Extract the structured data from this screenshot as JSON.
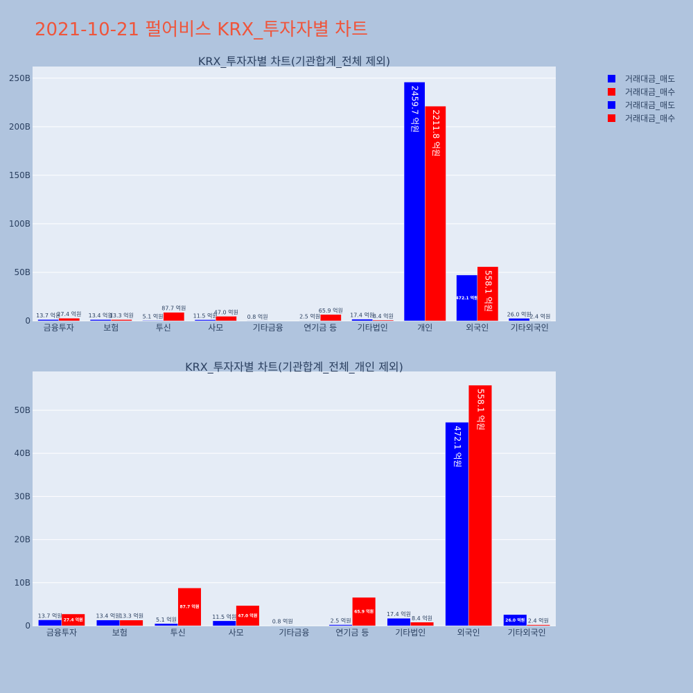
{
  "title": "2021-10-21 펄어비스 KRX_투자자별 차트",
  "colors": {
    "background": "#b0c4de",
    "plot_bg": "#e5ecf6",
    "title": "#ef553b",
    "sell": "#0000ff",
    "buy": "#ff0000",
    "text": "#2a3f5f"
  },
  "legend": [
    {
      "label": "거래대금_매도",
      "color": "#0000ff"
    },
    {
      "label": "거래대금_매수",
      "color": "#ff0000"
    },
    {
      "label": "거래대금_매도",
      "color": "#0000ff"
    },
    {
      "label": "거래대금_매수",
      "color": "#ff0000"
    }
  ],
  "chart_data": [
    {
      "type": "bar",
      "title": "KRX_투자자별 차트(기관합계_전체 제외)",
      "categories": [
        "금융투자",
        "보험",
        "투신",
        "사모",
        "기타금융",
        "연기금 등",
        "기타법인",
        "개인",
        "외국인",
        "기타외국인"
      ],
      "series": [
        {
          "name": "거래대금_매도",
          "color": "#0000ff",
          "values": [
            1.37,
            1.34,
            0.51,
            1.15,
            0.08,
            0.25,
            1.74,
            245.97,
            47.21,
            2.6
          ],
          "labels": [
            "13.7 억원",
            "13.4 억원",
            "5.1 억원",
            "11.5 억원",
            "0.8 억원",
            "2.5 억원",
            "17.4 억원",
            "2459.7 억원",
            "472.1 억원",
            "26.0 억원"
          ]
        },
        {
          "name": "거래대금_매수",
          "color": "#ff0000",
          "values": [
            2.74,
            1.33,
            8.77,
            4.7,
            0,
            6.59,
            0.84,
            221.18,
            55.81,
            0.24
          ],
          "labels": [
            "27.4 억원",
            "13.3 억원",
            "87.7 억원",
            "47.0 억원",
            "",
            "65.9 억원",
            "8.4 억원",
            "2211.8 억원",
            "558.1 억원",
            "2.4 억원"
          ]
        }
      ],
      "ylim": [
        0,
        262
      ],
      "yticks": [
        0,
        50,
        100,
        150,
        200,
        250
      ],
      "ytick_labels": [
        "0",
        "50B",
        "100B",
        "150B",
        "200B",
        "250B"
      ]
    },
    {
      "type": "bar",
      "title": "KRX_투자자별 차트(기관합계_전체_개인 제외)",
      "categories": [
        "금융투자",
        "보험",
        "투신",
        "사모",
        "기타금융",
        "연기금 등",
        "기타법인",
        "외국인",
        "기타외국인"
      ],
      "series": [
        {
          "name": "거래대금_매도",
          "color": "#0000ff",
          "values": [
            1.37,
            1.34,
            0.51,
            1.15,
            0.08,
            0.25,
            1.74,
            47.21,
            2.6
          ],
          "labels": [
            "13.7 억원",
            "13.4 억원",
            "5.1 억원",
            "11.5 억원",
            "0.8 억원",
            "2.5 억원",
            "17.4 억원",
            "472.1 억원",
            "26.0 억원"
          ]
        },
        {
          "name": "거래대금_매수",
          "color": "#ff0000",
          "values": [
            2.74,
            1.33,
            8.77,
            4.7,
            0,
            6.59,
            0.84,
            55.81,
            0.24
          ],
          "labels": [
            "27.4 억원",
            "13.3 억원",
            "87.7 억원",
            "47.0 억원",
            "",
            "65.9 억원",
            "8.4 억원",
            "558.1 억원",
            "2.4 억원"
          ]
        }
      ],
      "ylim": [
        0,
        59
      ],
      "yticks": [
        0,
        10,
        20,
        30,
        40,
        50
      ],
      "ytick_labels": [
        "0",
        "10B",
        "20B",
        "30B",
        "40B",
        "50B"
      ]
    }
  ]
}
